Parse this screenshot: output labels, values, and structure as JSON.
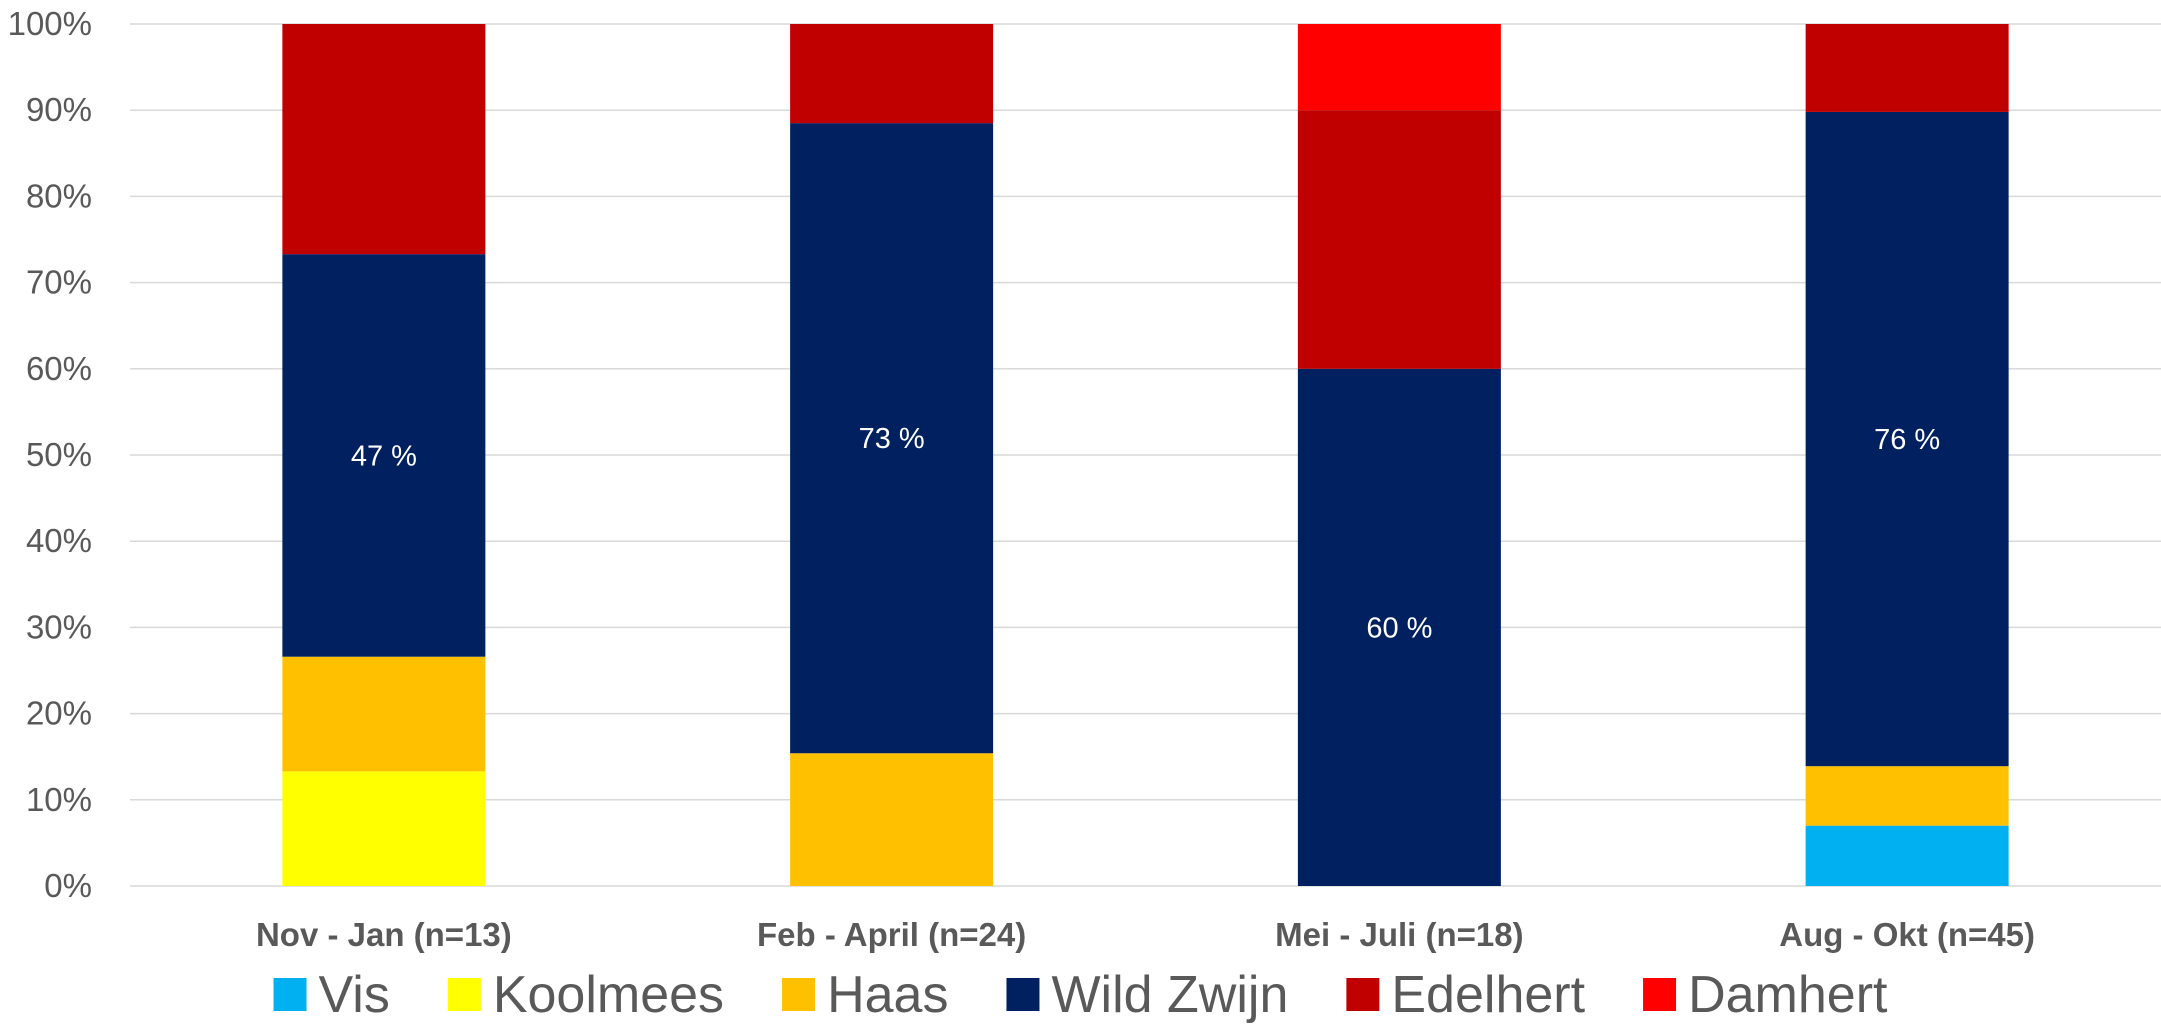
{
  "chart_data": {
    "type": "bar",
    "stacked": true,
    "percent": true,
    "categories": [
      "Nov - Jan (n=13)",
      "Feb - April (n=24)",
      "Mei - Juli (n=18)",
      "Aug - Okt (n=45)"
    ],
    "series": [
      {
        "name": "Vis",
        "color": "#00b0f0",
        "values": [
          0,
          0,
          0,
          7
        ]
      },
      {
        "name": "Koolmees",
        "color": "#ffff00",
        "values": [
          13.3,
          0,
          0,
          0
        ]
      },
      {
        "name": "Haas",
        "color": "#ffc000",
        "values": [
          13.3,
          15.4,
          0,
          6.9
        ]
      },
      {
        "name": "Wild Zwijn",
        "color": "#002060",
        "values": [
          46.7,
          73.1,
          60,
          75.9
        ]
      },
      {
        "name": "Edelhert",
        "color": "#c00000",
        "values": [
          26.7,
          11.5,
          30,
          10.2
        ]
      },
      {
        "name": "Damhert",
        "color": "#ff0000",
        "values": [
          0,
          0,
          10,
          0
        ]
      }
    ],
    "data_labels": [
      {
        "series": "Wild Zwijn",
        "category_index": 0,
        "text": "47 %"
      },
      {
        "series": "Wild Zwijn",
        "category_index": 1,
        "text": "73 %"
      },
      {
        "series": "Wild Zwijn",
        "category_index": 2,
        "text": "60 %"
      },
      {
        "series": "Wild Zwijn",
        "category_index": 3,
        "text": "76 %"
      }
    ],
    "yticks": [
      "0%",
      "10%",
      "20%",
      "30%",
      "40%",
      "50%",
      "60%",
      "70%",
      "80%",
      "90%",
      "100%"
    ],
    "ylim": [
      0,
      100
    ],
    "grid": true,
    "legend": "bottom",
    "title": "",
    "xlabel": "",
    "ylabel": ""
  }
}
